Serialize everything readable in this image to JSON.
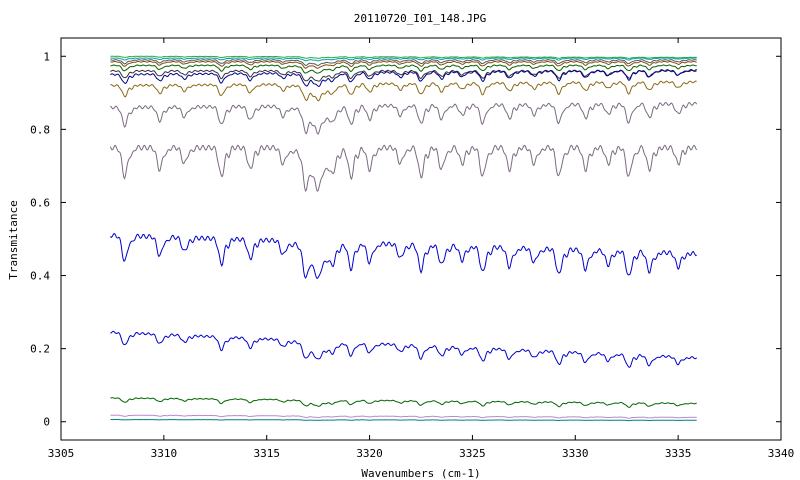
{
  "chart_data": {
    "type": "line",
    "title": "20110720_I01_148.JPG",
    "xlabel": "Wavenumbers (cm-1)",
    "ylabel": "Transmitance",
    "xlim": [
      3305,
      3340
    ],
    "ylim": [
      -0.05,
      1.05
    ],
    "x_ticks": [
      3305,
      3310,
      3315,
      3320,
      3325,
      3330,
      3335,
      3340
    ],
    "y_ticks": [
      0,
      0.2,
      0.4,
      0.6,
      0.8,
      1
    ],
    "x_tick_labels": [
      "3305",
      "3310",
      "3315",
      "3320",
      "3325",
      "3330",
      "3335",
      "3340"
    ],
    "y_tick_labels": [
      "0",
      "0.2",
      "0.4",
      "0.6",
      "0.8",
      "1"
    ],
    "grid": false,
    "legend": "none",
    "x_range": [
      3307.4,
      3335.9
    ],
    "absorption_lines": [
      3308.1,
      3309.8,
      3311.0,
      3312.8,
      3314.2,
      3315.8,
      3316.9,
      3317.5,
      3318.2,
      3319.1,
      3320.0,
      3321.5,
      3322.5,
      3323.5,
      3324.5,
      3325.5,
      3326.8,
      3328.0,
      3329.2,
      3330.5,
      3331.6,
      3332.6,
      3333.6,
      3335.0
    ],
    "series": [
      {
        "color": "#22aa44",
        "start": 1.0,
        "end": 0.997,
        "depth": 0.003
      },
      {
        "color": "#00a0a0",
        "start": 0.995,
        "end": 0.995,
        "depth": 0.005
      },
      {
        "color": "#555555",
        "start": 0.99,
        "end": 0.99,
        "depth": 0.01
      },
      {
        "color": "#8b4513",
        "start": 0.985,
        "end": 0.985,
        "depth": 0.012
      },
      {
        "color": "#006400",
        "start": 0.975,
        "end": 0.975,
        "depth": 0.015
      },
      {
        "color": "#333333",
        "start": 0.96,
        "end": 0.96,
        "depth": 0.02
      },
      {
        "color": "#00008b",
        "start": 0.95,
        "end": 0.962,
        "depth": 0.025
      },
      {
        "color": "#8b6914",
        "start": 0.92,
        "end": 0.93,
        "depth": 0.03
      },
      {
        "color": "#7b6a80",
        "start": 0.86,
        "end": 0.87,
        "depth": 0.05
      },
      {
        "color": "#7b6a80",
        "start": 0.75,
        "end": 0.75,
        "depth": 0.08
      },
      {
        "color": "#0000cc",
        "start": 0.51,
        "end": 0.46,
        "depth": 0.07
      },
      {
        "color": "#0000cc",
        "start": 0.245,
        "end": 0.175,
        "depth": 0.035
      },
      {
        "color": "#006400",
        "start": 0.065,
        "end": 0.05,
        "depth": 0.012
      },
      {
        "color": "#bb88cc",
        "start": 0.018,
        "end": 0.012,
        "depth": 0.003
      },
      {
        "color": "#008080",
        "start": 0.006,
        "end": 0.004,
        "depth": 0.001
      }
    ]
  }
}
